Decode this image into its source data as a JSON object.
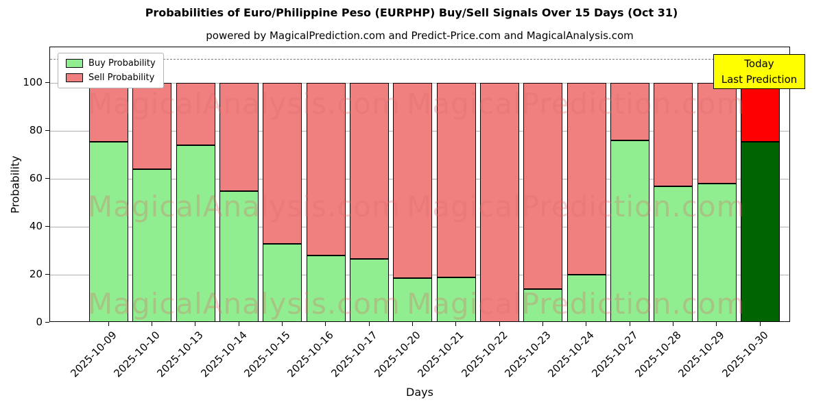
{
  "subtitle": "powered by MagicalPrediction.com and Predict-Price.com and MagicalAnalysis.com",
  "annotation": {
    "line1": "Today",
    "line2": "Last Prediction"
  },
  "watermarks": {
    "left": "MagicalAnalysis.com",
    "right": "MagicalPrediction.com"
  },
  "colors": {
    "buy": "#90EE90",
    "sell": "#F08080",
    "buy_last": "#006400",
    "sell_last": "#FF0000",
    "annotation_bg": "#FFFF00",
    "watermark": "rgba(222,110,110,0.32)",
    "grid": "#b0b0b0"
  },
  "chart_data": {
    "type": "bar",
    "stacked": true,
    "title": "Probabilities of Euro/Philippine Peso (EURPHP) Buy/Sell Signals Over 15 Days (Oct 31)",
    "xlabel": "Days",
    "ylabel": "Probability",
    "categories": [
      "2025-10-09",
      "2025-10-10",
      "2025-10-13",
      "2025-10-14",
      "2025-10-15",
      "2025-10-16",
      "2025-10-17",
      "2025-10-20",
      "2025-10-21",
      "2025-10-22",
      "2025-10-23",
      "2025-10-24",
      "2025-10-27",
      "2025-10-28",
      "2025-10-29",
      "2025-10-30"
    ],
    "series": [
      {
        "name": "Buy Probability",
        "values": [
          75.5,
          64,
          74,
          55,
          33,
          28,
          26.5,
          18.5,
          19,
          0,
          14,
          20,
          76,
          57,
          58,
          75.5
        ]
      },
      {
        "name": "Sell Probability",
        "values": [
          24.5,
          36,
          26,
          45,
          67,
          72,
          73.5,
          81.5,
          81,
          100,
          86,
          80,
          24,
          43,
          42,
          24.5
        ]
      }
    ],
    "ylim": [
      0,
      115
    ],
    "yticks": [
      0,
      20,
      40,
      60,
      80,
      100
    ],
    "dashed_line_y": 110,
    "grid": true,
    "legend_position": "upper left",
    "bar_edge_color": "#000000"
  }
}
